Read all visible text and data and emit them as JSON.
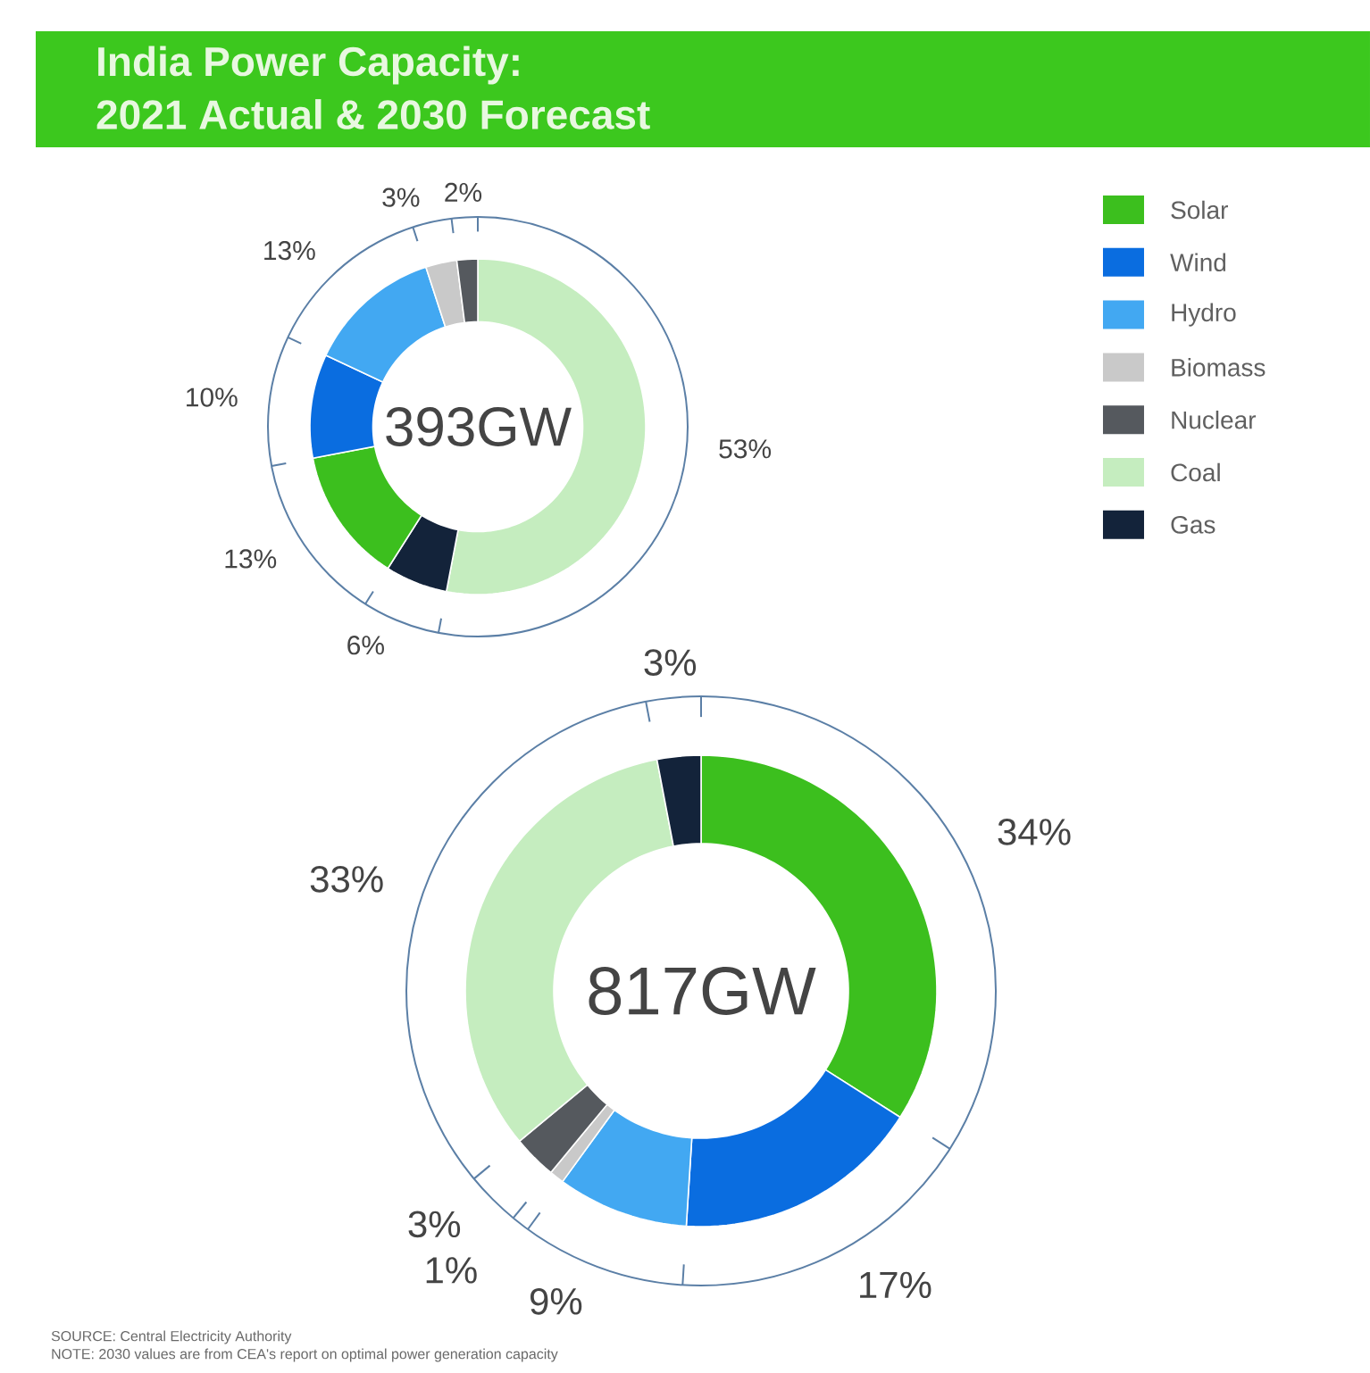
{
  "chart_data": [
    {
      "type": "donut",
      "title": "India Power Capacity:",
      "subtitle": "2021 Actual & 2030 Forecast",
      "categories": [
        null,
        null,
        null,
        null,
        null,
        null,
        null
      ],
      "values": [
        53,
        6,
        13,
        10,
        13,
        3,
        2
      ],
      "colors": [
        "#c5edbf",
        "#13233a",
        "#3cbf1e",
        "#0a6de0",
        "#42a8f2",
        "#c9c9c9",
        "#55595e"
      ],
      "value_labels": [
        "53%",
        "6%",
        "13%",
        "10%",
        "13%",
        "3%",
        "2%"
      ],
      "annotations": [
        "393GW"
      ]
    },
    {
      "type": "donut",
      "legend": "top right",
      "categories": [
        "Solar",
        "Wind",
        "Hydro",
        "Biomass",
        "Nuclear",
        "Coal",
        "Gas"
      ],
      "values": [
        34,
        17,
        9,
        1,
        3,
        33,
        3
      ],
      "colors": [
        "#3cbf1e",
        "#0a6de0",
        "#42a8f2",
        "#c9c9c9",
        "#55595e",
        "#c5edbf",
        "#13233a"
      ],
      "value_labels": [
        "34%",
        "17%",
        "9%",
        "1%",
        "3%",
        "33%",
        "3%"
      ],
      "annotations": [
        "817GW",
        "SOURCE: Central Electricity Authority",
        "NOTE: 2030 values are from CEA's report on optimal power generation capacity"
      ]
    }
  ]
}
